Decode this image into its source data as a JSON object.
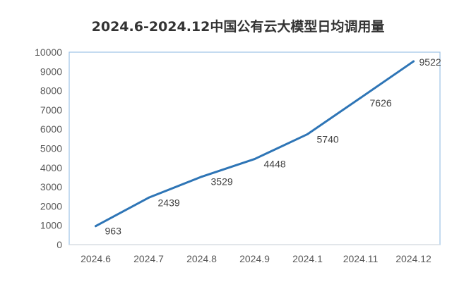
{
  "chart_data": {
    "type": "line",
    "title": "2024.6-2024.12中国公有云大模型日均调用量",
    "categories": [
      "2024.6",
      "2024.7",
      "2024.8",
      "2024.9",
      "2024.1",
      "2024.11",
      "2024.12"
    ],
    "series": [
      {
        "values": [
          963,
          2439,
          3529,
          4448,
          5740,
          7626,
          9522
        ],
        "color": "#2e75b6"
      }
    ],
    "ylim": [
      0,
      10000
    ],
    "yticks": [
      "0",
      "1000",
      "2000",
      "3000",
      "4000",
      "5000",
      "6000",
      "7000",
      "8000",
      "9000",
      "10000"
    ],
    "data_labels": [
      "963",
      "2439",
      "3529",
      "4448",
      "5740",
      "7626",
      "9522"
    ],
    "grid": false,
    "legend": "none",
    "plot_border_color": "#9dc3e6",
    "axis_color": "#d9d9d9"
  }
}
